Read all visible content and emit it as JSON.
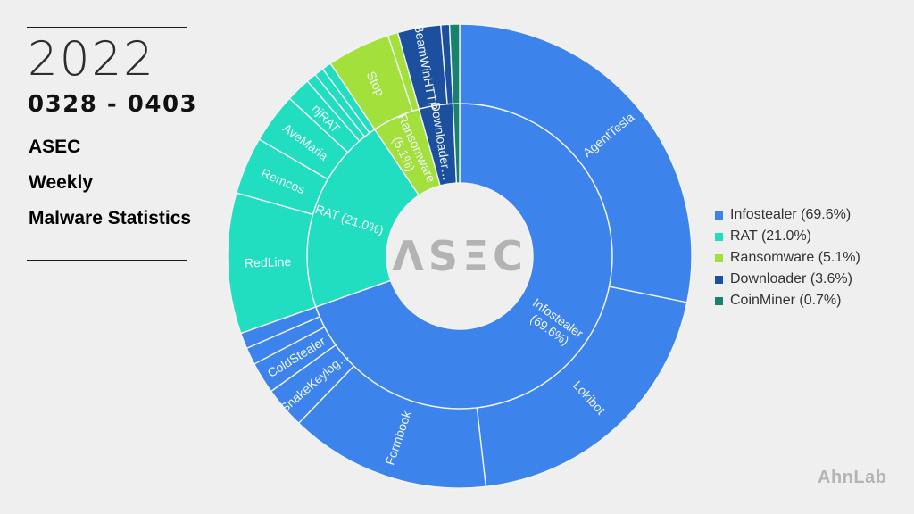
{
  "header": {
    "year": "2022",
    "date_range": "0328 - 0403",
    "title_line1": "ASEC",
    "title_line2": "Weekly",
    "title_line3": "Malware Statistics"
  },
  "chart_data": {
    "type": "sunburst-donut",
    "direction": "clockwise",
    "start_angle_deg": 0,
    "center_logo": {
      "text": "ASEC",
      "display": "ΛSΞC",
      "color": "#b3b3b3"
    },
    "categories": [
      {
        "name": "Infostealer",
        "pct": 69.6,
        "color": "#3c83ec",
        "label_line1": "Infostealer",
        "label_line2": "(69.6%)"
      },
      {
        "name": "RAT",
        "pct": 21.0,
        "color": "#22dec0",
        "label_line1": "RAT (21.0%)",
        "label_line2": ""
      },
      {
        "name": "Ransomware",
        "pct": 5.1,
        "color": "#a3e03c",
        "label_line1": "Ransomware",
        "label_line2": "(5.1%)"
      },
      {
        "name": "Downloader",
        "pct": 3.6,
        "color": "#1c4f9e",
        "label_line1": "Downloader…",
        "label_line2": ""
      },
      {
        "name": "CoinMiner",
        "pct": 0.7,
        "color": "#17826d",
        "label_line1": "",
        "label_line2": ""
      }
    ],
    "segments": [
      {
        "label": "AgentTesla",
        "pct": 28.2,
        "category": "Infostealer"
      },
      {
        "label": "Lokibot",
        "pct": 20.0,
        "category": "Infostealer"
      },
      {
        "label": "Formbook",
        "pct": 14.0,
        "category": "Infostealer"
      },
      {
        "label": "SnakeKeylog…",
        "pct": 2.9,
        "category": "Infostealer"
      },
      {
        "label": "ColdStealer",
        "pct": 2.2,
        "category": "Infostealer"
      },
      {
        "label": "",
        "pct": 1.2,
        "category": "Infostealer"
      },
      {
        "label": "",
        "pct": 1.1,
        "category": "Infostealer"
      },
      {
        "label": "RedLine",
        "pct": 9.8,
        "category": "RAT"
      },
      {
        "label": "Remcos",
        "pct": 4.0,
        "category": "RAT"
      },
      {
        "label": "AveMaria",
        "pct": 3.5,
        "category": "RAT"
      },
      {
        "label": "njRAT",
        "pct": 1.7,
        "category": "RAT"
      },
      {
        "label": "",
        "pct": 0.7,
        "category": "RAT"
      },
      {
        "label": "",
        "pct": 0.65,
        "category": "RAT"
      },
      {
        "label": "",
        "pct": 0.65,
        "category": "RAT"
      },
      {
        "label": "Stop",
        "pct": 4.4,
        "category": "Ransomware"
      },
      {
        "label": "",
        "pct": 0.7,
        "category": "Ransomware"
      },
      {
        "label": "BeamWinHTTP",
        "pct": 3.0,
        "category": "Downloader"
      },
      {
        "label": "",
        "pct": 0.6,
        "category": "Downloader"
      },
      {
        "label": "",
        "pct": 0.7,
        "category": "CoinMiner"
      }
    ]
  },
  "legend": {
    "items": [
      {
        "label": "Infostealer (69.6%)",
        "color": "#3c83ec"
      },
      {
        "label": "RAT (21.0%)",
        "color": "#22dec0"
      },
      {
        "label": "Ransomware (5.1%)",
        "color": "#a3e03c"
      },
      {
        "label": "Downloader (3.6%)",
        "color": "#1c4f9e"
      },
      {
        "label": "CoinMiner (0.7%)",
        "color": "#17826d"
      }
    ]
  },
  "footer": {
    "brand": "AhnLab"
  }
}
